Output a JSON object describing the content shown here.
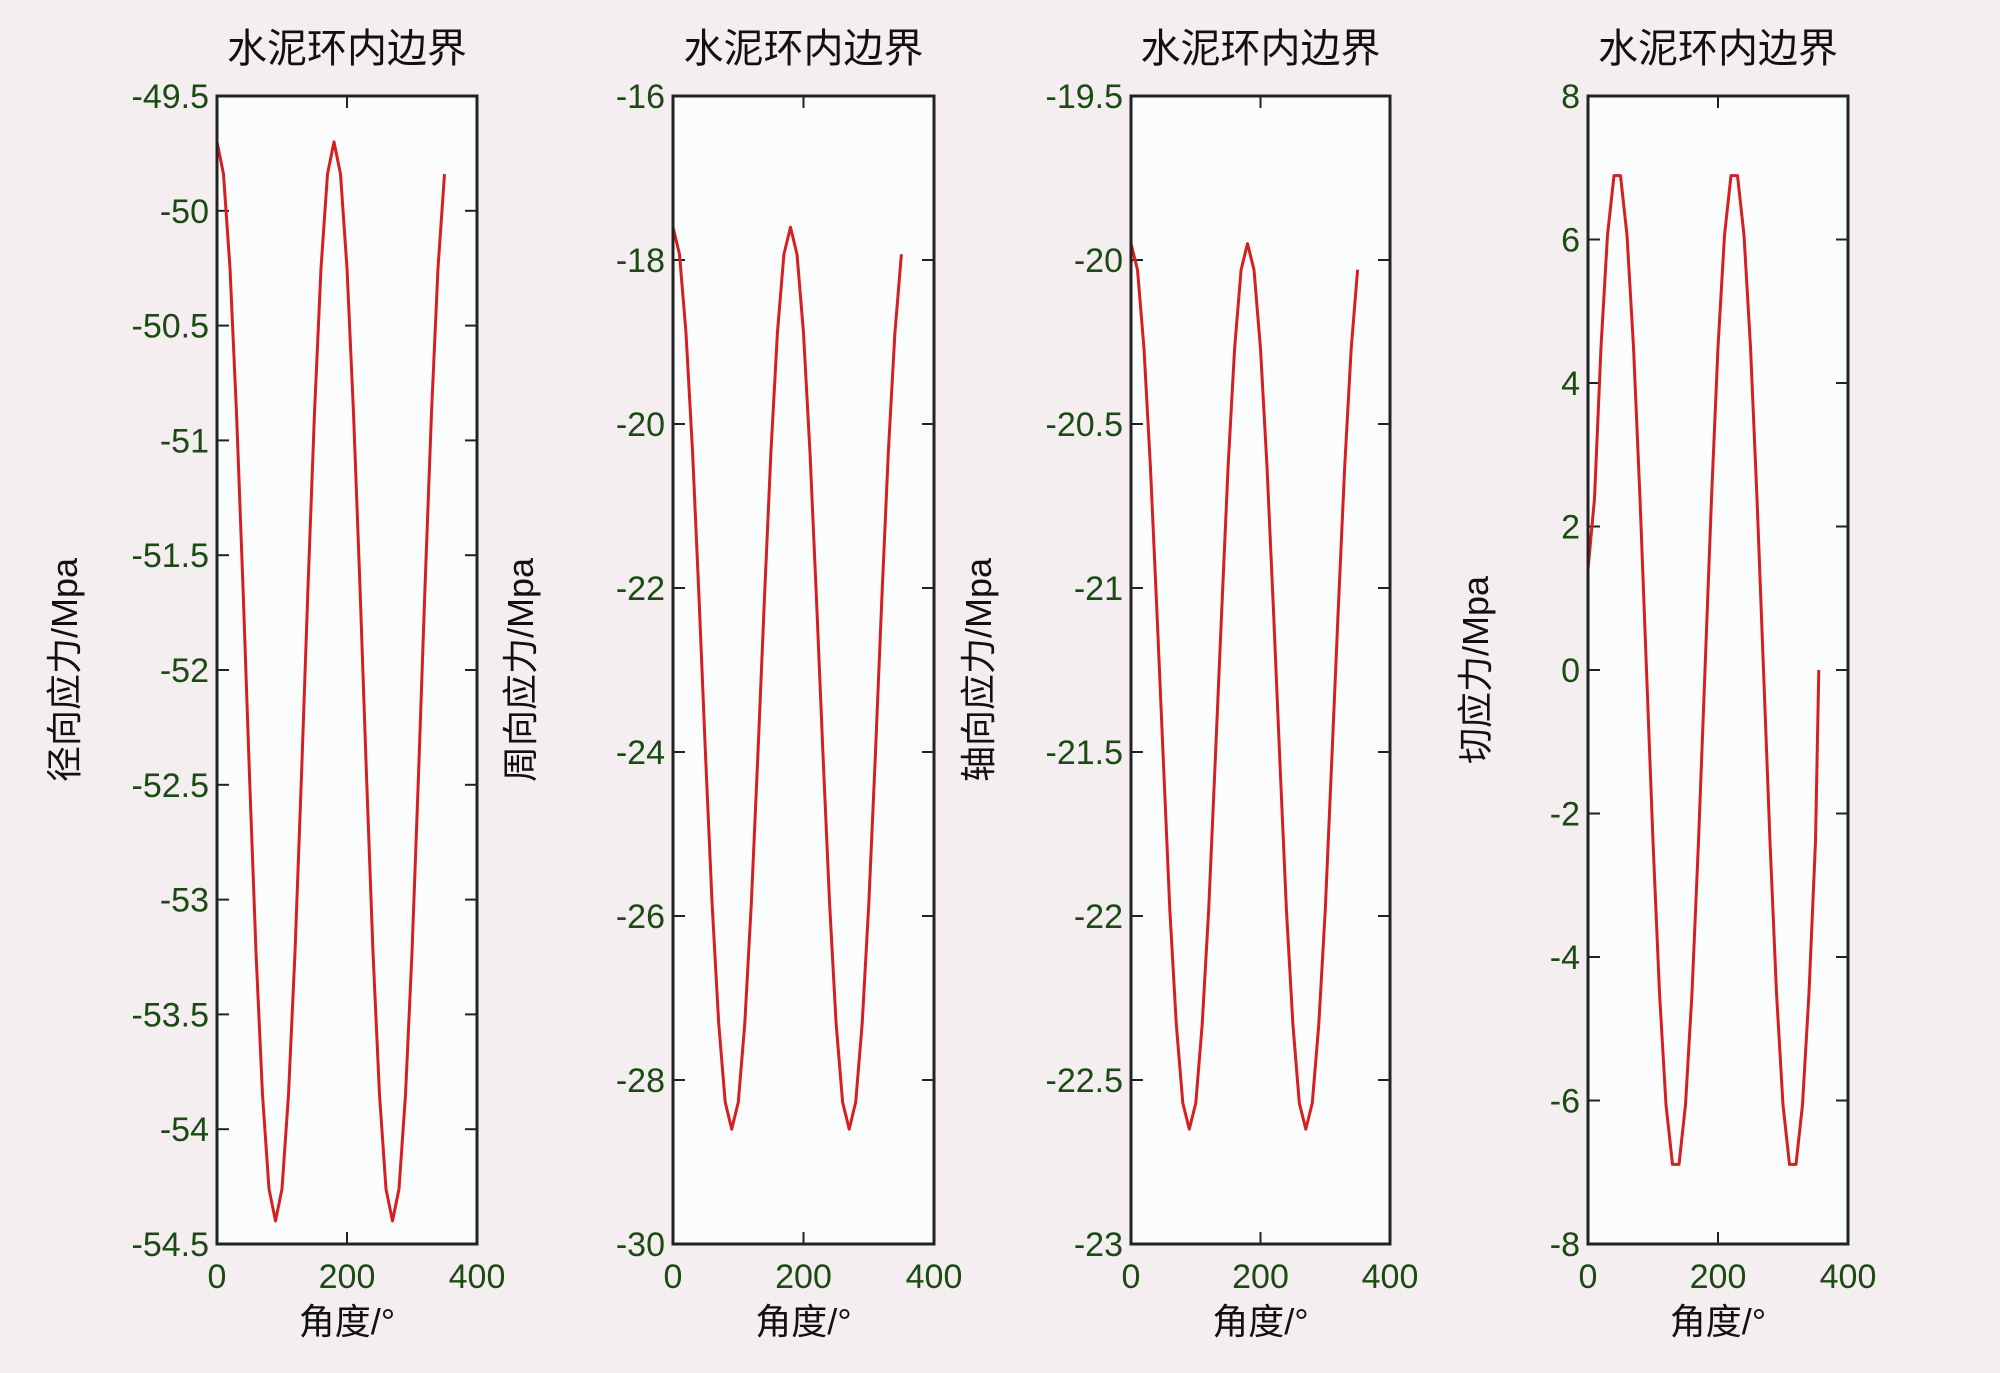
{
  "chart_data": [
    {
      "type": "line",
      "title": "水泥环内边界",
      "xlabel": "角度/°",
      "ylabel": "径向应力/Mpa",
      "xlim": [
        0,
        400
      ],
      "ylim": [
        -54.5,
        -49.5
      ],
      "xticks": [
        0,
        200,
        400
      ],
      "yticks": [
        -49.5,
        -50,
        -50.5,
        -51,
        -51.5,
        -52,
        -52.5,
        -53,
        -53.5,
        -54,
        -54.5
      ],
      "grid": false,
      "x": [
        0,
        10,
        20,
        30,
        40,
        50,
        60,
        70,
        80,
        90,
        100,
        110,
        120,
        130,
        140,
        150,
        160,
        170,
        180,
        190,
        200,
        210,
        220,
        230,
        240,
        250,
        260,
        270,
        280,
        290,
        300,
        310,
        320,
        330,
        340,
        350
      ],
      "series": [
        {
          "name": "径向应力",
          "color": "#d42020",
          "values": [
            -49.7,
            -49.84,
            -50.25,
            -50.88,
            -51.64,
            -52.46,
            -53.23,
            -53.85,
            -54.26,
            -54.4,
            -54.26,
            -53.85,
            -53.23,
            -52.46,
            -51.64,
            -50.88,
            -50.25,
            -49.84,
            -49.7,
            -49.84,
            -50.25,
            -50.88,
            -51.64,
            -52.46,
            -53.23,
            -53.85,
            -54.26,
            -54.4,
            -54.26,
            -53.85,
            -53.23,
            -52.46,
            -51.64,
            -50.88,
            -50.25,
            -49.84
          ]
        }
      ]
    },
    {
      "type": "line",
      "title": "水泥环内边界",
      "xlabel": "角度/°",
      "ylabel": "周向应力/Mpa",
      "xlim": [
        0,
        400
      ],
      "ylim": [
        -30,
        -16
      ],
      "xticks": [
        0,
        200,
        400
      ],
      "yticks": [
        -16,
        -18,
        -20,
        -22,
        -24,
        -26,
        -28,
        -30
      ],
      "grid": false,
      "x": [
        0,
        10,
        20,
        30,
        40,
        50,
        60,
        70,
        80,
        90,
        100,
        110,
        120,
        130,
        140,
        150,
        160,
        170,
        180,
        190,
        200,
        210,
        220,
        230,
        240,
        250,
        260,
        270,
        280,
        290,
        300,
        310,
        320,
        330,
        340,
        350
      ],
      "series": [
        {
          "name": "周向应力",
          "color": "#d42020",
          "values": [
            -17.6,
            -17.93,
            -18.89,
            -20.35,
            -22.14,
            -24.06,
            -25.85,
            -27.31,
            -28.27,
            -28.6,
            -28.27,
            -27.31,
            -25.85,
            -24.06,
            -22.14,
            -20.35,
            -18.89,
            -17.93,
            -17.6,
            -17.93,
            -18.89,
            -20.35,
            -22.14,
            -24.06,
            -25.85,
            -27.31,
            -28.27,
            -28.6,
            -28.27,
            -27.31,
            -25.85,
            -24.06,
            -22.14,
            -20.35,
            -18.89,
            -17.93
          ]
        }
      ]
    },
    {
      "type": "line",
      "title": "水泥环内边界",
      "xlabel": "角度/°",
      "ylabel": "轴向应力/Mpa",
      "xlim": [
        0,
        400
      ],
      "ylim": [
        -23,
        -19.5
      ],
      "xticks": [
        0,
        200,
        400
      ],
      "yticks": [
        -19.5,
        -20,
        -20.5,
        -21,
        -21.5,
        -22,
        -22.5,
        -23
      ],
      "grid": false,
      "x": [
        0,
        10,
        20,
        30,
        40,
        50,
        60,
        70,
        80,
        90,
        100,
        110,
        120,
        130,
        140,
        150,
        160,
        170,
        180,
        190,
        200,
        210,
        220,
        230,
        240,
        250,
        260,
        270,
        280,
        290,
        300,
        310,
        320,
        330,
        340,
        350
      ],
      "series": [
        {
          "name": "轴向应力",
          "color": "#d42020",
          "values": [
            -19.95,
            -20.03,
            -20.27,
            -20.63,
            -21.07,
            -21.53,
            -21.98,
            -22.33,
            -22.57,
            -22.65,
            -22.57,
            -22.33,
            -21.98,
            -21.53,
            -21.07,
            -20.63,
            -20.27,
            -20.03,
            -19.95,
            -20.03,
            -20.27,
            -20.63,
            -21.07,
            -21.53,
            -21.98,
            -22.33,
            -22.57,
            -22.65,
            -22.57,
            -22.33,
            -21.98,
            -21.53,
            -21.07,
            -20.63,
            -20.27,
            -20.03
          ]
        }
      ]
    },
    {
      "type": "line",
      "title": "水泥环内边界",
      "xlabel": "角度/°",
      "ylabel": "切应力/Mpa",
      "xlim": [
        0,
        400
      ],
      "ylim": [
        -8,
        8
      ],
      "xticks": [
        0,
        200,
        400
      ],
      "yticks": [
        8,
        6,
        4,
        2,
        0,
        -2,
        -4,
        -6,
        -8
      ],
      "grid": false,
      "x": [
        0,
        10,
        20,
        30,
        40,
        50,
        60,
        70,
        80,
        90,
        100,
        110,
        120,
        130,
        140,
        150,
        160,
        170,
        180,
        190,
        200,
        210,
        220,
        230,
        240,
        250,
        260,
        270,
        280,
        290,
        300,
        310,
        320,
        330,
        340,
        350,
        355
      ],
      "series": [
        {
          "name": "切应力",
          "color": "#d42020",
          "values": [
            1.4,
            2.39,
            4.5,
            6.06,
            6.89,
            6.89,
            6.06,
            4.5,
            2.39,
            0,
            -2.39,
            -4.5,
            -6.06,
            -6.89,
            -6.89,
            -6.06,
            -4.5,
            -2.39,
            0,
            2.39,
            4.5,
            6.06,
            6.89,
            6.89,
            6.06,
            4.5,
            2.39,
            0,
            -2.39,
            -4.5,
            -6.06,
            -6.89,
            -6.89,
            -6.06,
            -4.5,
            -2.39,
            0
          ]
        }
      ]
    }
  ]
}
